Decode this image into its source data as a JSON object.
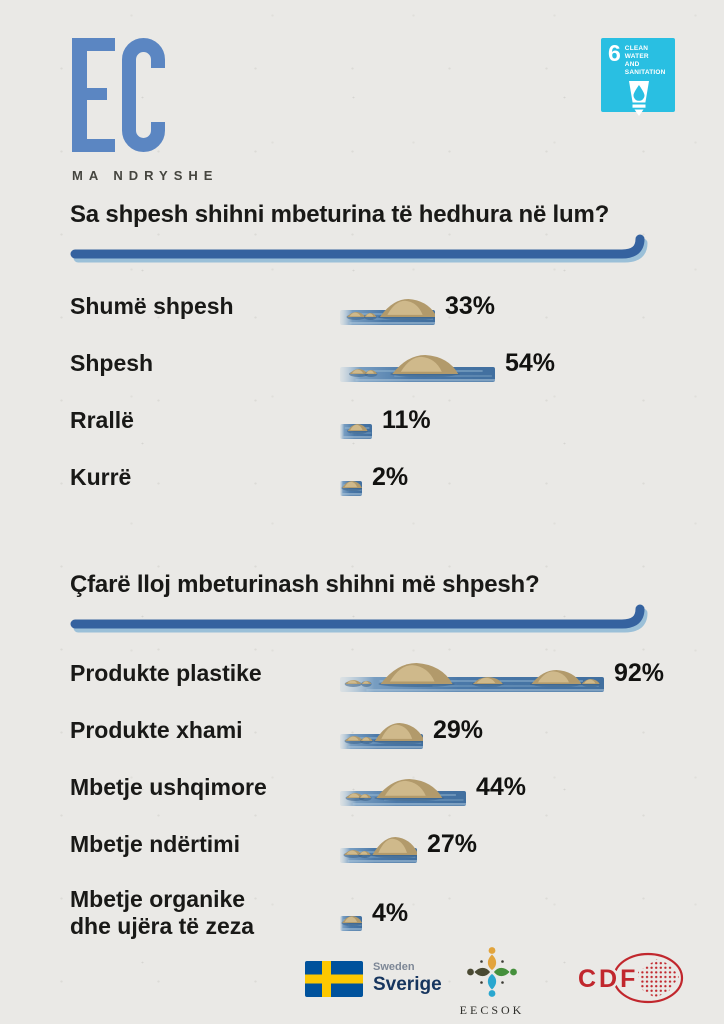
{
  "page": {
    "background": "#eae9e6",
    "text_color": "#191917"
  },
  "logo": {
    "text": "EC",
    "subtext": "MA NDRYSHE",
    "color": "#5b86c2"
  },
  "sdg_badge": {
    "number": "6",
    "title_line1": "CLEAN WATER",
    "title_line2": "AND SANITATION",
    "color": "#29bfe2"
  },
  "chart_data": [
    {
      "type": "bar",
      "title": "Sa shpesh shihni mbeturina të hedhura në lum?",
      "categories": [
        "Shumë shpesh",
        "Shpesh",
        "Rrallë",
        "Kurrë"
      ],
      "values": [
        33,
        54,
        11,
        2
      ],
      "labels": [
        "33%",
        "54%",
        "11%",
        "2%"
      ],
      "unit": "percent",
      "orientation": "horizontal",
      "bar_style": "river-with-rocks-illustration",
      "xlim": [
        0,
        100
      ]
    },
    {
      "type": "bar",
      "title": "Çfarë lloj mbeturinash shihni më shpesh?",
      "categories": [
        "Produkte plastike",
        "Produkte xhami",
        "Mbetje ushqimore",
        "Mbetje ndërtimi",
        "Mbetje organike\ndhe ujëra të zeza"
      ],
      "values": [
        92,
        29,
        44,
        27,
        4
      ],
      "labels": [
        "92%",
        "29%",
        "44%",
        "27%",
        "4%"
      ],
      "unit": "percent",
      "orientation": "horizontal",
      "bar_style": "river-with-rocks-illustration",
      "xlim": [
        0,
        100
      ]
    }
  ],
  "bar_colors": {
    "water_deep": "#4a78a8",
    "water_mid": "#6b95bd",
    "water_light": "#aec8dc",
    "ripple": "#9dbfd6",
    "rock": "#b29a6b",
    "rock_light": "#d4be90",
    "rock_shadow": "#3a6186"
  },
  "underline": {
    "main": "#35629f",
    "shadow": "#9bc0d8"
  },
  "footer": {
    "sweden": {
      "line1": "Sweden",
      "line2": "Sverige",
      "flag_blue": "#00529c",
      "flag_yellow": "#fdc800"
    },
    "eecsok": {
      "label": "EECSOK"
    },
    "cdf": {
      "label": "CDF",
      "color": "#c1272d"
    }
  }
}
